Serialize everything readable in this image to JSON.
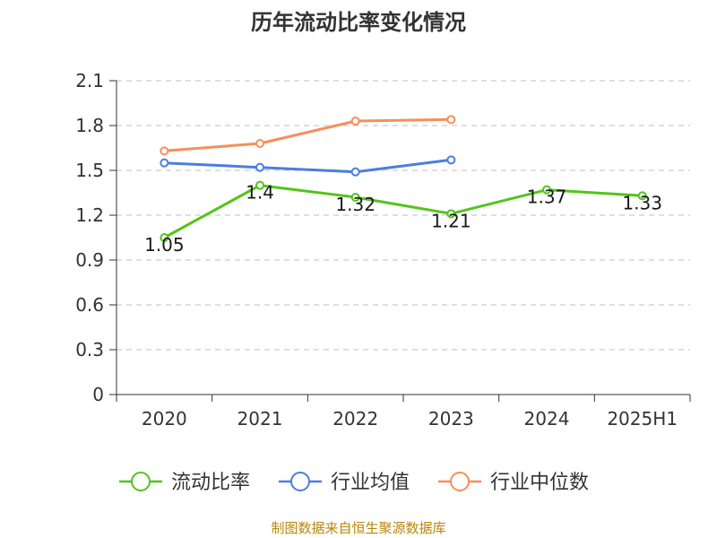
{
  "chart_data": {
    "type": "line",
    "title": "历年流动比率变化情况",
    "xlabel": "",
    "ylabel": "",
    "categories": [
      "2020",
      "2021",
      "2022",
      "2023",
      "2024",
      "2025H1"
    ],
    "ylim": [
      0,
      2.1
    ],
    "yticks": [
      "0",
      "0.3",
      "0.6",
      "0.9",
      "1.2",
      "1.5",
      "1.8",
      "2.1"
    ],
    "grid": true,
    "legend_position": "bottom",
    "series": [
      {
        "name": "流动比率",
        "color": "#52c41a",
        "values": [
          1.05,
          1.4,
          1.32,
          1.21,
          1.37,
          1.33
        ],
        "labels": [
          "1.05",
          "1.4",
          "1.32",
          "1.21",
          "1.37",
          "1.33"
        ]
      },
      {
        "name": "行业均值",
        "color": "#4a7fe0",
        "values": [
          1.55,
          1.52,
          1.49,
          1.57,
          null,
          null
        ]
      },
      {
        "name": "行业中位数",
        "color": "#f5905a",
        "values": [
          1.63,
          1.68,
          1.83,
          1.84,
          null,
          null
        ]
      }
    ]
  },
  "source": "制图数据来自恒生聚源数据库"
}
